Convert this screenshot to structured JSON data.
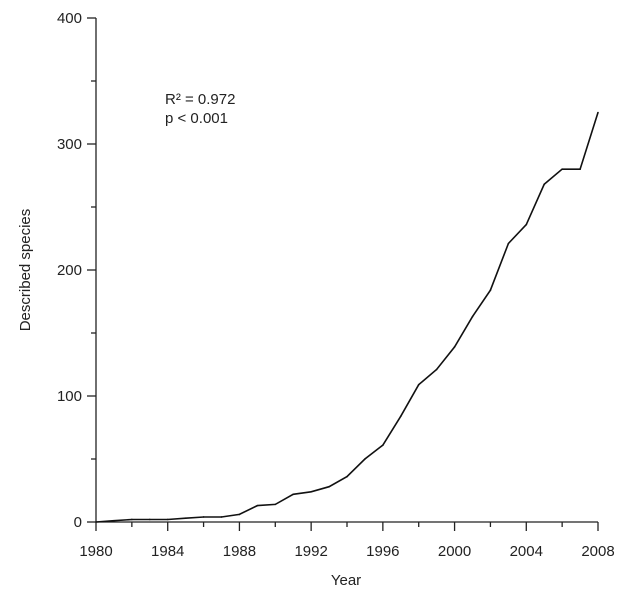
{
  "chart_data": {
    "type": "line",
    "title": "",
    "xlabel": "Year",
    "ylabel": "Described species",
    "xlim": [
      1980,
      2008
    ],
    "ylim": [
      0,
      400
    ],
    "x_major_ticks": [
      1980,
      1984,
      1988,
      1992,
      1996,
      2000,
      2004,
      2008
    ],
    "x_tick_labels": [
      "1980",
      "1984",
      "1988",
      "1992",
      "1996",
      "2000",
      "2004",
      "2008"
    ],
    "x_minor_ticks": [
      1982,
      1986,
      1990,
      1994,
      1998,
      2002,
      2006
    ],
    "y_major_ticks": [
      0,
      100,
      200,
      300,
      400
    ],
    "y_tick_labels": [
      "0",
      "100",
      "200",
      "300",
      "400"
    ],
    "y_minor_ticks": [
      50,
      150,
      250,
      350
    ],
    "grid": false,
    "legend": "none",
    "line_color": "#111111",
    "annotations": [
      "R² = 0.972",
      "p < 0.001"
    ],
    "series": [
      {
        "x": [
          1980,
          1981,
          1982,
          1983,
          1984,
          1985,
          1986,
          1987,
          1988,
          1989,
          1990,
          1991,
          1992,
          1993,
          1994,
          1995,
          1996,
          1997,
          1998,
          1999,
          2000,
          2001,
          2002,
          2003,
          2004,
          2005,
          2006,
          2007,
          2008
        ],
        "values": [
          0,
          1,
          2,
          2,
          2,
          3,
          4,
          4,
          6,
          13,
          14,
          22,
          24,
          28,
          36,
          50,
          61,
          84,
          109,
          121,
          139,
          163,
          184,
          221,
          236,
          268,
          280,
          280,
          325
        ]
      }
    ]
  }
}
